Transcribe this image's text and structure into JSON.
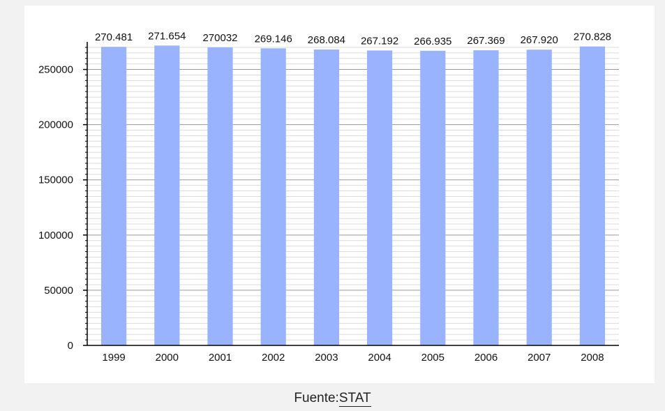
{
  "chart_data": {
    "type": "bar",
    "categories": [
      "1999",
      "2000",
      "2001",
      "2002",
      "2003",
      "2004",
      "2005",
      "2006",
      "2007",
      "2008"
    ],
    "values": [
      270481,
      271654,
      270032,
      269146,
      268084,
      267192,
      266935,
      267369,
      267920,
      270828
    ],
    "value_labels": [
      "270.481",
      "271.654",
      "270032",
      "269.146",
      "268.084",
      "267.192",
      "266.935",
      "267.369",
      "267.920",
      "270.828"
    ],
    "y_ticks": [
      "0",
      "50000",
      "100000",
      "150000",
      "200000",
      "250000"
    ],
    "ylim": [
      0,
      275000
    ],
    "bar_color": "#99b3ff",
    "grid": true
  },
  "caption": {
    "prefix": "Fuente:",
    "link": "STAT"
  }
}
